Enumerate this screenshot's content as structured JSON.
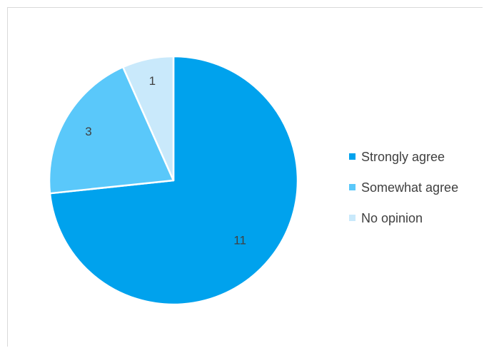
{
  "chart_data": {
    "type": "pie",
    "categories": [
      "Strongly agree",
      "Somewhat agree",
      "No opinion"
    ],
    "values": [
      11,
      3,
      1
    ],
    "data_labels": [
      "11",
      "3",
      "1"
    ],
    "colors": [
      "#00a2ed",
      "#5ac8fa",
      "#c9e9fb"
    ],
    "legend_position": "right",
    "start_angle": "12 o'clock, clockwise"
  }
}
